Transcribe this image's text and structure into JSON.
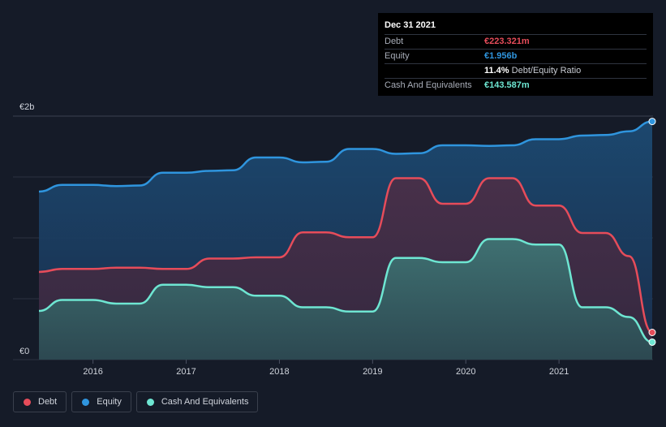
{
  "tooltip": {
    "date": "Dec 31 2021",
    "rows": [
      {
        "label": "Debt",
        "value": "€223.321m",
        "color_key": "debt"
      },
      {
        "label": "Equity",
        "value": "€1.956b",
        "color_key": "equity"
      },
      {
        "label": "",
        "value": "11.4%",
        "suffix": "Debt/Equity Ratio",
        "color_key": "ratio"
      },
      {
        "label": "Cash And Equivalents",
        "value": "€143.587m",
        "color_key": "cash"
      }
    ]
  },
  "legend": [
    {
      "label": "Debt",
      "color": "#e64c5a"
    },
    {
      "label": "Equity",
      "color": "#2f95de"
    },
    {
      "label": "Cash And Equivalents",
      "color": "#6ee6d2"
    }
  ],
  "colors": {
    "background": "#151b28",
    "debt": "#e64c5a",
    "equity": "#2f95de",
    "cash": "#6ee6d2",
    "grid": "#2a3040"
  },
  "chart_data": {
    "type": "area",
    "title": "",
    "xlabel": "",
    "ylabel": "",
    "y_top_label": "€2b",
    "y_bottom_label": "€0",
    "ylim": [
      0,
      2000
    ],
    "y_unit": "€m",
    "xlim": [
      2015.42,
      2022.0
    ],
    "x_ticks": [
      {
        "label": "2016",
        "value": 2016
      },
      {
        "label": "2017",
        "value": 2017
      },
      {
        "label": "2018",
        "value": 2018
      },
      {
        "label": "2019",
        "value": 2019
      },
      {
        "label": "2020",
        "value": 2020
      },
      {
        "label": "2021",
        "value": 2021
      }
    ],
    "grid": true,
    "legend_position": "bottom-left",
    "series": [
      {
        "name": "Equity",
        "color_key": "equity",
        "x": [
          2015.42,
          2015.67,
          2016.0,
          2016.25,
          2016.5,
          2016.75,
          2017.0,
          2017.25,
          2017.5,
          2017.75,
          2018.0,
          2018.25,
          2018.5,
          2018.75,
          2019.0,
          2019.25,
          2019.5,
          2019.75,
          2020.0,
          2020.25,
          2020.5,
          2020.75,
          2021.0,
          2021.25,
          2021.5,
          2021.75,
          2022.0
        ],
        "values": [
          1380,
          1435,
          1435,
          1425,
          1430,
          1535,
          1535,
          1550,
          1555,
          1660,
          1660,
          1620,
          1625,
          1730,
          1730,
          1690,
          1695,
          1760,
          1760,
          1755,
          1760,
          1810,
          1810,
          1840,
          1845,
          1875,
          1956
        ]
      },
      {
        "name": "Debt",
        "color_key": "debt",
        "x": [
          2015.42,
          2015.67,
          2016.0,
          2016.25,
          2016.5,
          2016.75,
          2017.0,
          2017.25,
          2017.5,
          2017.75,
          2018.0,
          2018.25,
          2018.5,
          2018.75,
          2019.0,
          2019.25,
          2019.5,
          2019.75,
          2020.0,
          2020.25,
          2020.5,
          2020.75,
          2021.0,
          2021.25,
          2021.5,
          2021.75,
          2022.0
        ],
        "values": [
          720,
          745,
          745,
          755,
          755,
          745,
          745,
          830,
          830,
          840,
          840,
          1045,
          1045,
          1005,
          1005,
          1490,
          1490,
          1280,
          1280,
          1490,
          1490,
          1265,
          1265,
          1040,
          1040,
          850,
          223.321
        ]
      },
      {
        "name": "Cash And Equivalents",
        "color_key": "cash",
        "x": [
          2015.42,
          2015.67,
          2016.0,
          2016.25,
          2016.5,
          2016.75,
          2017.0,
          2017.25,
          2017.5,
          2017.75,
          2018.0,
          2018.25,
          2018.5,
          2018.75,
          2019.0,
          2019.25,
          2019.5,
          2019.75,
          2020.0,
          2020.25,
          2020.5,
          2020.75,
          2021.0,
          2021.25,
          2021.5,
          2021.75,
          2022.0
        ],
        "values": [
          400,
          490,
          490,
          460,
          460,
          615,
          615,
          595,
          595,
          525,
          525,
          430,
          430,
          395,
          395,
          835,
          835,
          800,
          800,
          990,
          990,
          945,
          945,
          430,
          430,
          350,
          143.587
        ]
      }
    ]
  }
}
